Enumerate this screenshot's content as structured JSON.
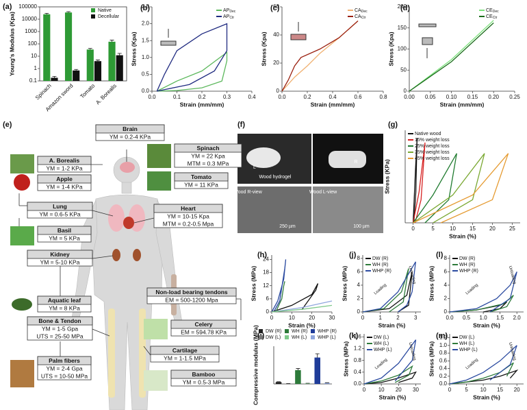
{
  "chart_data": [
    {
      "type": "bar",
      "label": "(a)",
      "ylabel": "Young's Modulus (Kpa)",
      "ylog": true,
      "frame": true,
      "categories": [
        "Spinach",
        "Amazon sword",
        "Tomato",
        "A. Borealis"
      ],
      "ylim": [
        0.1,
        100000
      ],
      "yticks": [
        0.1,
        1,
        10,
        100,
        1000,
        10000,
        100000
      ],
      "legend": "upper right",
      "series": [
        {
          "name": "Native",
          "color": "#2e9a35",
          "values": [
            25000,
            35000,
            35,
            150
          ],
          "errors": [
            5000,
            6000,
            8,
            50
          ]
        },
        {
          "name": "Decellular",
          "color": "#111111",
          "values": [
            0.18,
            0.7,
            4,
            12
          ],
          "errors": [
            0.05,
            0.15,
            1,
            5
          ]
        }
      ]
    },
    {
      "type": "line",
      "label": "(b)",
      "xlabel": "Strain (mm/mm)",
      "ylabel": "Stress (Kpa)",
      "xlim": [
        0,
        0.4
      ],
      "xticks": [
        {
          "value": 0,
          "label": "0.0"
        },
        0.1,
        0.2,
        0.3,
        0.4
      ],
      "ylim": [
        0,
        2.5
      ],
      "yticks": [
        {
          "value": 0,
          "label": "0.0"
        },
        0.5,
        {
          "value": 1,
          "label": "1.0"
        },
        1.5,
        {
          "value": 2,
          "label": "2.0"
        },
        2.5
      ],
      "legend": "upper right",
      "series": [
        {
          "name": "AP",
          "subscript": "Dec",
          "color": "#5cb85c",
          "x": [
            0.02,
            0.1,
            0.2,
            0.3,
            0.3,
            0.28,
            0.2,
            0.1,
            0.02
          ],
          "values": [
            0,
            0.3,
            0.6,
            1.15,
            0.9,
            0.3,
            0.1,
            0.02,
            0
          ]
        },
        {
          "name": "AP",
          "subscript": "Ctr",
          "color": "#1f2a80",
          "x": [
            0.02,
            0.15,
            0.25,
            0.3,
            0.3,
            0.2,
            0.1,
            0.05,
            0.02
          ],
          "values": [
            0,
            0.2,
            0.6,
            1.2,
            2.0,
            1.7,
            1.2,
            0.5,
            0
          ]
        }
      ]
    },
    {
      "type": "line",
      "label": "(c)",
      "xlabel": "Strain (mm/mm)",
      "ylabel": "Stress (Kpa)",
      "xlim": [
        0,
        0.8
      ],
      "xticks": [
        {
          "value": 0,
          "label": "0.0"
        },
        0.2,
        0.4,
        0.6,
        0.8
      ],
      "ylim": [
        0,
        60
      ],
      "yticks": [
        0,
        20,
        40,
        60
      ],
      "legend": "upper right",
      "series": [
        {
          "name": "CA",
          "subscript": "Dec",
          "color": "#f0b070",
          "x": [
            0,
            0.1,
            0.2,
            0.3,
            0.45,
            0.6
          ],
          "values": [
            0,
            10,
            18,
            27,
            38,
            50
          ]
        },
        {
          "name": "CA",
          "subscript": "Ctr",
          "color": "#9a2010",
          "x": [
            0,
            0.05,
            0.1,
            0.15,
            0.3,
            0.45,
            0.6
          ],
          "values": [
            0,
            8,
            18,
            24,
            30,
            38,
            50
          ]
        }
      ]
    },
    {
      "type": "line",
      "label": "(d)",
      "xlabel": "Strain (mm/mm)",
      "ylabel": "Stress (Kpa)",
      "xlim": [
        0,
        0.25
      ],
      "xticks": [
        {
          "value": 0,
          "label": "0.00"
        },
        0.05,
        {
          "value": 0.1,
          "label": "0.10"
        },
        0.15,
        {
          "value": 0.2,
          "label": "0.20"
        },
        0.25
      ],
      "ylim": [
        0,
        200
      ],
      "yticks": [
        0,
        50,
        100,
        150,
        200
      ],
      "legend": "upper right",
      "series": [
        {
          "name": "CE",
          "subscript": "Dec",
          "color": "#7be27b",
          "x": [
            0,
            0.1,
            0.2
          ],
          "values": [
            0,
            75,
            168
          ]
        },
        {
          "name": "CE",
          "subscript": "Ctr",
          "color": "#1a6b1a",
          "x": [
            0,
            0.1,
            0.2
          ],
          "values": [
            0,
            70,
            162
          ]
        }
      ]
    },
    {
      "type": "line",
      "label": "(g)",
      "xlabel": "Strain (%)",
      "ylabel": "Stress (KPa)",
      "xlim": [
        -2,
        27
      ],
      "xticks": [
        0,
        5,
        10,
        15,
        20,
        25
      ],
      "ylim": [
        0,
        60
      ],
      "legend": "upper left",
      "series": [
        {
          "name": "Native wood",
          "color": "#111111",
          "x": [
            0,
            0.6,
            1,
            0.7,
            0.2
          ],
          "values": [
            0,
            35,
            55,
            20,
            0
          ]
        },
        {
          "name": "15% weight loss",
          "color": "#d62020",
          "x": [
            0,
            1.5,
            3,
            2,
            0.5
          ],
          "values": [
            0,
            20,
            52,
            15,
            0
          ]
        },
        {
          "name": "25% weight loss",
          "color": "#1e7a2e",
          "x": [
            0,
            5,
            11,
            9,
            3
          ],
          "values": [
            0,
            18,
            45,
            15,
            0
          ]
        },
        {
          "name": "35% weight loss",
          "color": "#7aa832",
          "x": [
            0,
            10,
            18,
            15,
            5
          ],
          "values": [
            0,
            18,
            45,
            15,
            0
          ]
        },
        {
          "name": "45% weight loss",
          "color": "#e59a30",
          "x": [
            0,
            15,
            24,
            20,
            7
          ],
          "values": [
            0,
            18,
            45,
            15,
            0
          ]
        }
      ]
    },
    {
      "type": "line",
      "label": "(h)",
      "xlabel": "Strain (%)",
      "ylabel": "Stress (MPa)",
      "xlim": [
        0,
        30
      ],
      "xticks": [
        0,
        10,
        20,
        30
      ],
      "ylim": [
        0,
        26
      ],
      "yticks": [
        0,
        6,
        12,
        18,
        24
      ],
      "series": [
        {
          "color": "#2a4aa0",
          "x": [
            0,
            3,
            6,
            7,
            6.5,
            4,
            1
          ],
          "values": [
            0,
            5,
            15,
            24,
            20,
            5,
            0
          ]
        },
        {
          "color": "#111111",
          "x": [
            0,
            10,
            20,
            23,
            22,
            15
          ],
          "values": [
            0,
            3,
            8,
            13,
            10,
            1
          ]
        },
        {
          "color": "#2d7a3a",
          "x": [
            2,
            5,
            6,
            6.5
          ],
          "values": [
            0,
            6,
            12,
            14
          ]
        },
        {
          "color": "#8fa6dd",
          "x": [
            0,
            15,
            30
          ],
          "values": [
            0,
            2,
            5
          ]
        },
        {
          "color": "#7ec98a",
          "x": [
            0,
            15,
            30
          ],
          "values": [
            0,
            1.2,
            3
          ]
        }
      ]
    },
    {
      "type": "line",
      "label": "(j)",
      "xlabel": "Strain (%)",
      "ylabel": "Stress (MPa)",
      "xlim": [
        0,
        3.3
      ],
      "xticks": [
        0,
        1,
        2,
        3
      ],
      "ylim": [
        0,
        8.5
      ],
      "yticks": [
        0,
        2,
        4,
        6,
        8
      ],
      "legend": "upper left",
      "annotations": [
        "Loading",
        "Unloading"
      ],
      "series": [
        {
          "name": "DW (R)",
          "color": "#111111",
          "x": [
            0,
            1.5,
            2.5,
            2.8,
            2.6,
            2
          ],
          "values": [
            0,
            0.5,
            2.5,
            6,
            1,
            0
          ]
        },
        {
          "name": "WH (R)",
          "color": "#2d7a3a",
          "x": [
            0,
            1.2,
            2.2,
            2.6,
            2.3,
            1.5
          ],
          "values": [
            0,
            0.5,
            3,
            6.5,
            1.5,
            0
          ]
        },
        {
          "name": "WHP (R)",
          "color": "#2a4aa0",
          "x": [
            0,
            1,
            2,
            3,
            2.8,
            2.5,
            2
          ],
          "values": [
            0,
            0.5,
            3,
            7.5,
            3,
            1,
            0
          ]
        }
      ]
    },
    {
      "type": "line",
      "label": "(l)",
      "xlabel": "Strain (%)",
      "ylabel": "Stress (MPa)",
      "xlim": [
        0,
        2.2
      ],
      "xticks": [
        {
          "value": 0,
          "label": "0.0"
        },
        0.5,
        {
          "value": 1,
          "label": "1.0"
        },
        1.5,
        {
          "value": 2,
          "label": "2.0"
        }
      ],
      "ylim": [
        0,
        8.5
      ],
      "yticks": [
        0,
        2,
        4,
        6,
        8
      ],
      "legend": "upper left",
      "annotations": [
        "Loading",
        "Unloading"
      ],
      "series": [
        {
          "name": "DW (R)",
          "color": "#111111",
          "x": [
            0,
            0.8,
            1.5,
            1.7,
            1.5,
            1
          ],
          "values": [
            0,
            0.3,
            1,
            1.5,
            0.5,
            0
          ]
        },
        {
          "name": "WH (R)",
          "color": "#2d7a3a",
          "x": [
            0,
            0.8,
            1.6,
            1.9,
            1.7,
            1.2
          ],
          "values": [
            0,
            0.3,
            1.2,
            2.5,
            0.8,
            0
          ]
        },
        {
          "name": "WHP (R)",
          "color": "#2a4aa0",
          "x": [
            0,
            0.8,
            1.4,
            1.8,
            2,
            1.8,
            1.2
          ],
          "values": [
            0,
            0.5,
            2,
            4,
            6,
            2,
            0
          ]
        }
      ]
    },
    {
      "type": "bar",
      "label": "(i)",
      "ylabel": "Compressive modulus (MPa)",
      "ylim": [
        0,
        600
      ],
      "legend": "above",
      "legend_columns": 3,
      "series": [
        {
          "name": "DW (R)",
          "color": "#222222",
          "values": [
            30
          ],
          "errors": [
            5
          ]
        },
        {
          "name": "DW (L)",
          "color": "#777777",
          "values": [
            5
          ],
          "errors": [
            2
          ]
        },
        {
          "name": "WH (R)",
          "color": "#2d7a3a",
          "values": [
            220
          ],
          "errors": [
            25
          ]
        },
        {
          "name": "WH (L)",
          "color": "#7ec98a",
          "values": [
            8
          ],
          "errors": [
            3
          ]
        },
        {
          "name": "WHP (R)",
          "color": "#1f3c99",
          "values": [
            420
          ],
          "errors": [
            60
          ]
        },
        {
          "name": "WHP (L)",
          "color": "#8fa6dd",
          "values": [
            15
          ],
          "errors": [
            5
          ]
        }
      ]
    },
    {
      "type": "line",
      "label": "(k)",
      "xlabel": "Strain (%)",
      "ylabel": "Stress (MPa)",
      "xlim": [
        0,
        33
      ],
      "xticks": [
        0,
        10,
        20,
        30
      ],
      "ylim": [
        0,
        1.7
      ],
      "yticks": [
        {
          "value": 0,
          "label": "0.0"
        },
        0.4,
        0.8,
        1.2,
        1.6
      ],
      "legend": "upper left",
      "annotations": [
        "Loading",
        "Unloading"
      ],
      "series": [
        {
          "name": "DW (L)",
          "color": "#111111",
          "x": [
            0,
            10,
            20,
            30,
            28,
            20
          ],
          "values": [
            0,
            0.05,
            0.2,
            0.4,
            0.2,
            0.05
          ]
        },
        {
          "name": "WH (L)",
          "color": "#2d7a3a",
          "x": [
            0,
            10,
            20,
            28,
            26,
            18
          ],
          "values": [
            0,
            0.1,
            0.3,
            0.6,
            0.3,
            0.05
          ]
        },
        {
          "name": "WHP (L)",
          "color": "#2a4aa0",
          "x": [
            0,
            10,
            20,
            30,
            28,
            18
          ],
          "values": [
            0,
            0.2,
            0.7,
            1.5,
            0.8,
            0.1
          ]
        }
      ]
    },
    {
      "type": "line",
      "label": "(m)",
      "xlabel": "Strain (%)",
      "ylabel": "Stress (MPa)",
      "xlim": [
        0,
        22
      ],
      "xticks": [
        0,
        5,
        10,
        15,
        20
      ],
      "ylim": [
        0,
        1.3
      ],
      "yticks": [
        {
          "value": 0,
          "label": "0.0"
        },
        0.2,
        0.4,
        0.6,
        0.8,
        {
          "value": 1,
          "label": "1.0"
        },
        1.2
      ],
      "legend": "upper left",
      "annotations": [
        "Loading",
        "Unloading"
      ],
      "series": [
        {
          "name": "DW (L)",
          "color": "#111111",
          "x": [
            0,
            5,
            10,
            15,
            20,
            18
          ],
          "values": [
            0,
            0.05,
            0.1,
            0.2,
            0.35,
            0.15
          ]
        },
        {
          "name": "WH (L)",
          "color": "#2d7a3a",
          "x": [
            0,
            5,
            10,
            15,
            19,
            17
          ],
          "values": [
            0,
            0.05,
            0.15,
            0.3,
            0.55,
            0.2
          ]
        },
        {
          "name": "WHP (L)",
          "color": "#2a4aa0",
          "x": [
            0,
            5,
            10,
            15,
            20,
            18,
            12
          ],
          "values": [
            0,
            0.1,
            0.3,
            0.6,
            1,
            0.5,
            0.1
          ]
        }
      ]
    }
  ],
  "body_map": {
    "label": "(e)",
    "boxes": [
      {
        "title": "Brain",
        "lines": [
          "YM = 0.2-4 KPa"
        ]
      },
      {
        "title": "A. Borealis",
        "lines": [
          "YM = 1-2 KPa"
        ]
      },
      {
        "title": "Apple",
        "lines": [
          "YM = 1-4 KPa"
        ]
      },
      {
        "title": "Spinach",
        "lines": [
          "YM = 22 Kpa",
          "MTM = 0.3 MPa"
        ]
      },
      {
        "title": "Tomato",
        "lines": [
          "YM = 11 KPa"
        ]
      },
      {
        "title": "Lung",
        "lines": [
          "YM = 0.6-5 KPa"
        ]
      },
      {
        "title": "Heart",
        "lines": [
          "YM = 10-15 Kpa",
          "MTM = 0.2-0.5 Mpa"
        ]
      },
      {
        "title": "Basil",
        "lines": [
          "YM = 5 KPa"
        ]
      },
      {
        "title": "Kidney",
        "lines": [
          "YM = 5-10 KPa"
        ]
      },
      {
        "title": "Non-load bearing tendons",
        "lines": [
          "EM = 500-1200 Mpa"
        ]
      },
      {
        "title": "Aquatic leaf",
        "lines": [
          "YM = 8 KPa"
        ]
      },
      {
        "title": "Celery",
        "lines": [
          "EM = 594.78 KPa"
        ]
      },
      {
        "title": "Bone & Tendon",
        "lines": [
          "YM = 1-5 Gpa",
          "UTS = 25-50 MPa"
        ]
      },
      {
        "title": "Cartilage",
        "lines": [
          "YM = 1-1.5 MPa"
        ]
      },
      {
        "title": "Palm fibers",
        "lines": [
          "YM = 2-4 Gpa",
          "UTS = 10-50 MPa"
        ]
      },
      {
        "title": "Bamboo",
        "lines": [
          "YM = 0.5-3 MPa"
        ]
      }
    ]
  },
  "wood_images": {
    "label": "(f)",
    "texts": [
      "Wood hydrogel",
      "L",
      "R",
      "Wood R-view",
      "Wood L-view",
      "250 µm",
      "100 µm"
    ]
  }
}
